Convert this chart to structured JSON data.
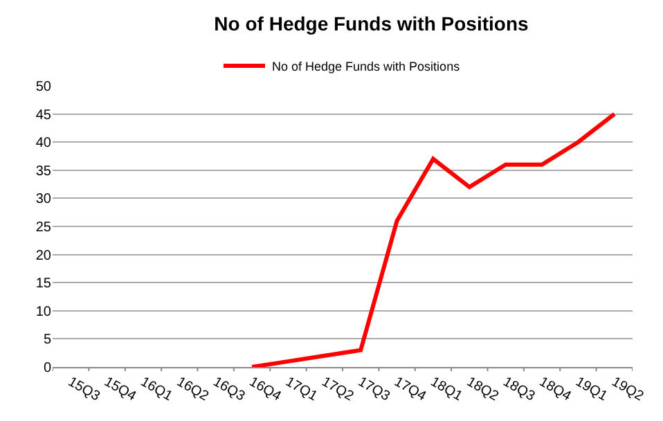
{
  "chart_data": {
    "type": "line",
    "title": "No of Hedge Funds with Positions",
    "categories": [
      "15Q3",
      "15Q4",
      "16Q1",
      "16Q2",
      "16Q3",
      "16Q4",
      "17Q1",
      "17Q2",
      "17Q3",
      "17Q4",
      "18Q1",
      "18Q2",
      "18Q3",
      "18Q4",
      "19Q1",
      "19Q2"
    ],
    "series": [
      {
        "name": "No of Hedge Funds with Positions",
        "color": "#ff0000",
        "values": [
          null,
          null,
          null,
          null,
          null,
          0,
          1,
          2,
          3,
          26,
          37,
          32,
          36,
          36,
          40,
          45
        ]
      }
    ],
    "ylim": [
      0,
      50
    ],
    "yticks": [
      0,
      5,
      10,
      15,
      20,
      25,
      30,
      35,
      40,
      45,
      50
    ],
    "grid": "y",
    "legend": "top",
    "marker": "none",
    "line_style": "solid"
  }
}
